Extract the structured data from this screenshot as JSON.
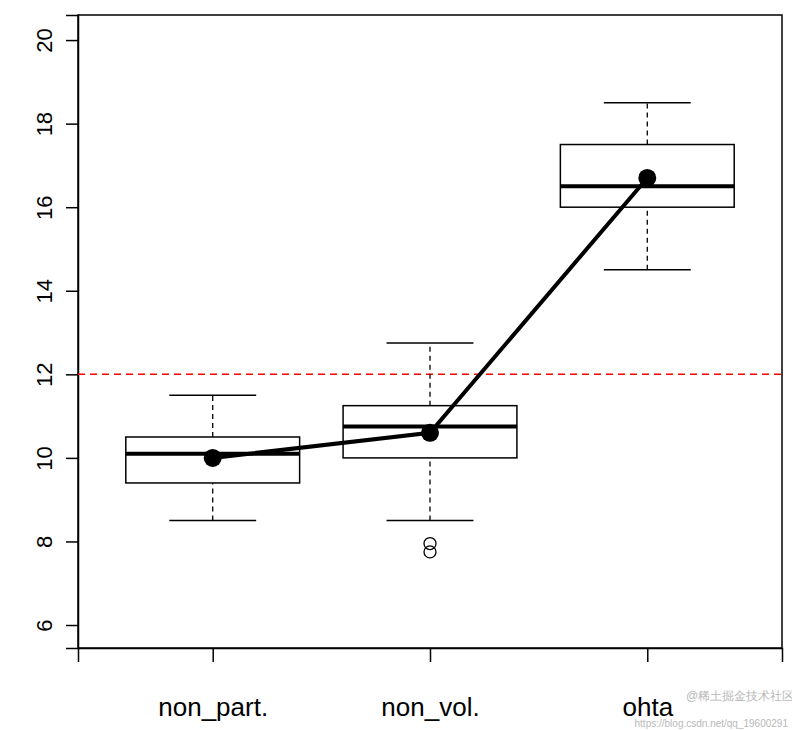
{
  "chart_data": {
    "type": "box",
    "categories": [
      "non_part.",
      "non_vol.",
      "ohta"
    ],
    "boxes": [
      {
        "min": 8.5,
        "q1": 9.4,
        "median": 10.1,
        "q3": 10.5,
        "max": 11.5,
        "outliers": []
      },
      {
        "min": 8.5,
        "q1": 10.0,
        "median": 10.75,
        "q3": 11.25,
        "max": 12.75,
        "outliers": [
          7.95,
          7.75
        ]
      },
      {
        "min": 14.5,
        "q1": 16.0,
        "median": 16.5,
        "q3": 17.5,
        "max": 18.5,
        "outliers": []
      }
    ],
    "series": [
      {
        "type": "line",
        "marker": "circle",
        "color": "#000000",
        "values": [
          10.0,
          10.6,
          16.7
        ]
      }
    ],
    "reference_line": {
      "value": 12,
      "color": "#ff0000",
      "line_style": "dashed"
    },
    "ylim": [
      5.45,
      20.6
    ],
    "yticks": [
      6,
      8,
      10,
      12,
      14,
      16,
      18,
      20
    ],
    "annotations": [
      "@稀土掘金技术社区",
      "https://blog.csdn.net/qq_19600291"
    ]
  }
}
